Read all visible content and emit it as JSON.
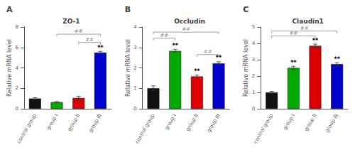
{
  "chart_data": [
    {
      "type": "bar",
      "panel_label": "A",
      "title": "ZO-1",
      "ylabel": "Relative mRNA level",
      "categories": [
        "control group",
        "group I",
        "group II",
        "group III"
      ],
      "values": [
        1.0,
        0.65,
        1.05,
        5.5
      ],
      "errors": [
        0.08,
        0.05,
        0.15,
        0.12
      ],
      "colors": [
        "#111111",
        "#00aa00",
        "#dd0000",
        "#0000cc"
      ],
      "ylim": [
        0,
        8
      ],
      "yticks": [
        0,
        2,
        4,
        6,
        8
      ],
      "grid": false,
      "star_labels": [
        null,
        null,
        null,
        "**"
      ],
      "brackets": [
        {
          "from": "group I",
          "to": "group III",
          "y": 7.3,
          "label": "##",
          "color": "#888888"
        },
        {
          "from": "group II",
          "to": "group III",
          "y": 6.5,
          "label": "##",
          "color": "#888888"
        }
      ]
    },
    {
      "type": "bar",
      "panel_label": "B",
      "title": "Occludin",
      "ylabel": "Relative mRNA level",
      "categories": [
        "control group",
        "group I",
        "group II",
        "group III"
      ],
      "values": [
        1.0,
        2.83,
        1.58,
        2.22
      ],
      "errors": [
        0.12,
        0.08,
        0.07,
        0.08
      ],
      "colors": [
        "#111111",
        "#00aa00",
        "#dd0000",
        "#0000cc"
      ],
      "ylim": [
        0,
        4
      ],
      "yticks": [
        0,
        1,
        2,
        3,
        4
      ],
      "grid": false,
      "star_labels": [
        null,
        "**",
        "**",
        "**"
      ],
      "brackets": [
        {
          "from": "control group",
          "to": "group I",
          "y": 3.45,
          "label": "##",
          "color": "#888888"
        },
        {
          "from": "control group",
          "to": "group III",
          "y": 3.75,
          "label": "##",
          "color": "#888888"
        },
        {
          "from": "group II",
          "to": "group III",
          "y": 2.65,
          "label": "##",
          "color": "#888888"
        }
      ]
    },
    {
      "type": "bar",
      "panel_label": "C",
      "title": "Claudin1",
      "ylabel": "Relative mRNA level",
      "categories": [
        "control group",
        "group I",
        "group II",
        "group III"
      ],
      "values": [
        1.0,
        2.5,
        3.85,
        2.73
      ],
      "errors": [
        0.06,
        0.1,
        0.1,
        0.09
      ],
      "colors": [
        "#111111",
        "#00aa00",
        "#dd0000",
        "#0000cc"
      ],
      "ylim": [
        0,
        5
      ],
      "yticks": [
        0,
        1,
        2,
        3,
        4,
        5
      ],
      "grid": false,
      "star_labels": [
        null,
        "**",
        "**",
        "**"
      ],
      "brackets": [
        {
          "from": "control group",
          "to": "group II",
          "y": 4.45,
          "label": "##",
          "color": "#888888"
        },
        {
          "from": "control group",
          "to": "group III",
          "y": 4.75,
          "label": "##",
          "color": "#888888"
        }
      ]
    }
  ]
}
